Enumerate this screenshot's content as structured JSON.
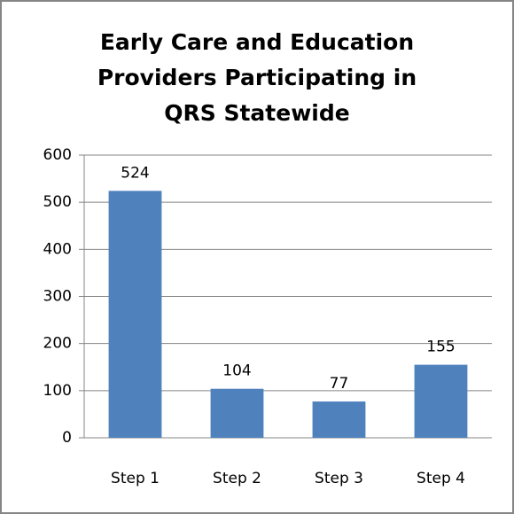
{
  "chart_data": {
    "type": "bar",
    "title": "Early Care and Education Providers Participating in QRS Statewide",
    "categories": [
      "Step 1",
      "Step 2",
      "Step 3",
      "Step 4"
    ],
    "values": [
      524,
      104,
      77,
      155
    ],
    "color": "#4f81bd",
    "ylim": [
      0,
      600
    ],
    "yticks": [
      0,
      100,
      200,
      300,
      400,
      500,
      600
    ],
    "grid": true
  }
}
